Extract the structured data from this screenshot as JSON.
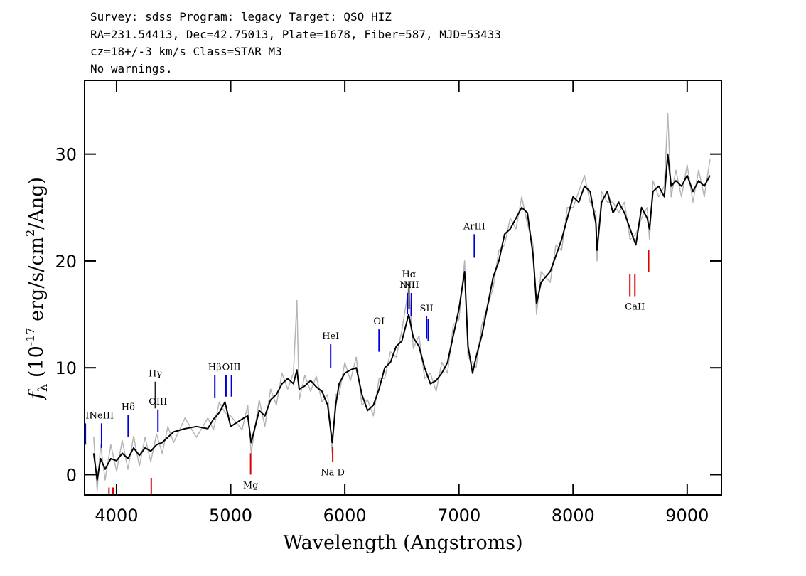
{
  "chart_data": {
    "type": "line",
    "title": [
      "Survey: sdss Program: legacy Target: QSO_HIZ",
      "RA=231.54413, Dec=42.75013, Plate=1678, Fiber=587, MJD=53433",
      "cz=18+/-3 km/s Class=STAR M3",
      "No warnings."
    ],
    "x_label": "Wavelength (Angstroms)",
    "y_label": [
      "f",
      "λ",
      " (10",
      "-17",
      " erg/s/cm",
      "2",
      "/Ang)"
    ],
    "xlim": [
      3720,
      9300
    ],
    "ylim": [
      -1.9,
      36.9
    ],
    "xticks": [
      4000,
      5000,
      6000,
      7000,
      8000,
      9000
    ],
    "yticks": [
      0,
      10,
      20,
      30
    ],
    "x": [
      3800,
      3830,
      3860,
      3900,
      3950,
      4000,
      4050,
      4100,
      4150,
      4200,
      4250,
      4300,
      4350,
      4400,
      4450,
      4500,
      4600,
      4700,
      4800,
      4850,
      4900,
      4950,
      5000,
      5100,
      5150,
      5180,
      5250,
      5300,
      5350,
      5400,
      5450,
      5500,
      5550,
      5580,
      5600,
      5650,
      5700,
      5750,
      5800,
      5850,
      5890,
      5920,
      5950,
      6000,
      6050,
      6100,
      6150,
      6200,
      6250,
      6300,
      6350,
      6400,
      6450,
      6500,
      6560,
      6600,
      6650,
      6700,
      6750,
      6800,
      6850,
      6900,
      6950,
      7000,
      7050,
      7080,
      7120,
      7150,
      7200,
      7300,
      7350,
      7400,
      7450,
      7500,
      7550,
      7600,
      7650,
      7680,
      7720,
      7800,
      7850,
      7900,
      7950,
      8000,
      8050,
      8100,
      8150,
      8200,
      8210,
      8250,
      8300,
      8350,
      8400,
      8450,
      8500,
      8550,
      8600,
      8650,
      8670,
      8700,
      8750,
      8800,
      8830,
      8860,
      8900,
      8950,
      9000,
      9050,
      9100,
      9150,
      9200
    ],
    "series": [
      {
        "color": "#b4b4b4",
        "values": [
          3.5,
          -1.5,
          2.8,
          -0.5,
          2.8,
          0.3,
          3.2,
          0.5,
          3.6,
          0.8,
          3.5,
          1.2,
          3.8,
          2.0,
          4.5,
          3.0,
          5.3,
          3.5,
          5.3,
          4.2,
          6.8,
          5.8,
          5.5,
          4.2,
          6.5,
          2.0,
          7.0,
          4.5,
          8.0,
          6.5,
          9.5,
          8.0,
          9.5,
          16.3,
          7.0,
          9.3,
          7.8,
          9.2,
          6.8,
          7.5,
          2.0,
          7.5,
          7.5,
          10.5,
          8.8,
          11.0,
          6.5,
          7.0,
          5.5,
          9.0,
          9.0,
          11.5,
          11.0,
          13.5,
          17.5,
          11.8,
          13.0,
          9.0,
          9.5,
          7.8,
          10.5,
          9.5,
          14.0,
          14.5,
          20.0,
          11.0,
          10.5,
          10.0,
          14.0,
          17.5,
          21.0,
          21.5,
          24.0,
          23.0,
          26.0,
          23.5,
          21.5,
          15.0,
          19.0,
          18.0,
          21.5,
          21.0,
          25.0,
          25.0,
          26.5,
          28.0,
          25.5,
          24.5,
          20.0,
          26.5,
          25.5,
          25.5,
          24.5,
          25.5,
          22.0,
          22.5,
          24.0,
          25.0,
          22.0,
          27.5,
          26.0,
          27.0,
          33.8,
          26.0,
          28.5,
          26.0,
          29.0,
          25.5,
          28.5,
          26.0,
          29.5
        ]
      },
      {
        "color": "#000000",
        "values": [
          2,
          -0.5,
          1.5,
          0.5,
          1.5,
          1.3,
          2,
          1.5,
          2.5,
          1.8,
          2.5,
          2.2,
          2.8,
          3.0,
          3.5,
          4.0,
          4.3,
          4.5,
          4.3,
          5.2,
          5.8,
          6.8,
          4.5,
          5.2,
          5.5,
          3.0,
          6.0,
          5.5,
          7.0,
          7.5,
          8.5,
          9.0,
          8.5,
          9.8,
          8.0,
          8.3,
          8.8,
          8.2,
          7.8,
          6.5,
          3.0,
          6.5,
          8.5,
          9.5,
          9.8,
          10.0,
          7.5,
          6.0,
          6.5,
          8.0,
          10.0,
          10.5,
          12.0,
          12.5,
          15.0,
          12.8,
          12.0,
          10.0,
          8.5,
          8.8,
          9.5,
          10.5,
          13.0,
          15.5,
          19.0,
          12.0,
          9.5,
          11.0,
          13.0,
          18.5,
          20.0,
          22.5,
          23.0,
          24.0,
          25.0,
          24.5,
          20.5,
          16.0,
          18.0,
          19.0,
          20.5,
          22.0,
          24.0,
          26.0,
          25.5,
          27.0,
          26.5,
          23.5,
          21.0,
          25.5,
          26.5,
          24.5,
          25.5,
          24.5,
          23.0,
          21.5,
          25.0,
          24.0,
          23.0,
          26.5,
          27.0,
          26.0,
          30.0,
          27.0,
          27.5,
          27.0,
          28.0,
          26.5,
          27.5,
          27.0,
          28.0
        ]
      }
    ],
    "markers": [
      {
        "label": "OII",
        "x": 3727,
        "y": [
          2.8,
          4.8
        ],
        "color": "#0000dd"
      },
      {
        "label": "NeIII",
        "x": 3869,
        "y": [
          2.5,
          4.8
        ],
        "color": "#0000dd"
      },
      {
        "label": "Hδ",
        "x": 4102,
        "y": [
          3.5,
          5.6
        ],
        "color": "#0000dd"
      },
      {
        "label": "Hγ",
        "x": 4340,
        "y": [
          6.2,
          8.7
        ],
        "color": "#222222"
      },
      {
        "label": "OIII",
        "x": 4363,
        "y": [
          4.0,
          6.1
        ],
        "color": "#0000dd"
      },
      {
        "label": "Hβ",
        "x": 4861,
        "y": [
          7.2,
          9.3
        ],
        "color": "#0000dd"
      },
      {
        "label": null,
        "x": 4959,
        "y": [
          7.3,
          9.3
        ],
        "color": "#0000dd"
      },
      {
        "label": "OIII",
        "x": 5007,
        "y": [
          7.3,
          9.3
        ],
        "color": "#0000dd"
      },
      {
        "label": "HeI",
        "x": 5876,
        "y": [
          10.0,
          12.2
        ],
        "color": "#0000dd"
      },
      {
        "label": "OI",
        "x": 6300,
        "y": [
          11.5,
          13.6
        ],
        "color": "#0000dd"
      },
      {
        "label": "NII",
        "x": 6548,
        "y": [
          15.0,
          17.0
        ],
        "color": "#0000dd"
      },
      {
        "label": "Hα",
        "x": 6563,
        "y": [
          15.5,
          18.0
        ],
        "color": "#222222"
      },
      {
        "label": "NII",
        "x": 6583,
        "y": [
          14.8,
          17.0
        ],
        "color": "#0000dd"
      },
      {
        "label": "SII",
        "x": 6716,
        "y": [
          12.7,
          14.8
        ],
        "color": "#0000dd"
      },
      {
        "label": null,
        "x": 6731,
        "y": [
          12.5,
          14.6
        ],
        "color": "#0000dd"
      },
      {
        "label": "ArIII",
        "x": 7135,
        "y": [
          20.3,
          22.5
        ],
        "color": "#0000dd"
      },
      {
        "label": null,
        "x": 3934,
        "y": [
          -1.9,
          -1.2
        ],
        "color": "#dd0000"
      },
      {
        "label": null,
        "x": 3969,
        "y": [
          -1.9,
          -1.2
        ],
        "color": "#dd0000"
      },
      {
        "label": null,
        "x": 4304,
        "y": [
          -1.9,
          -0.3
        ],
        "color": "#dd0000"
      },
      {
        "label": "Mg",
        "x": 5175,
        "y": [
          0.0,
          2.0
        ],
        "color": "#dd0000"
      },
      {
        "label": "Na D",
        "x": 5894,
        "y": [
          1.2,
          2.6
        ],
        "color": "#dd0000"
      },
      {
        "label": null,
        "x": 8498,
        "y": [
          16.7,
          18.8
        ],
        "color": "#dd0000"
      },
      {
        "label": "CaII",
        "x": 8542,
        "y": [
          16.7,
          18.8
        ],
        "color": "#dd0000"
      },
      {
        "label": null,
        "x": 8662,
        "y": [
          19.0,
          21.0
        ],
        "color": "#dd0000"
      }
    ]
  }
}
